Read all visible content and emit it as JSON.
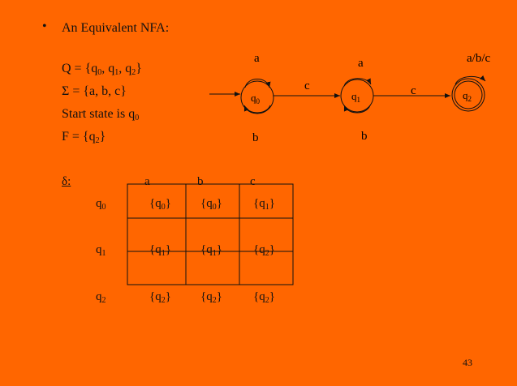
{
  "slide": {
    "bullet": "•",
    "title": "An Equivalent NFA:",
    "page_number": "43"
  },
  "definition": {
    "Q_prefix": "Q = {q",
    "Q_sub0": "0",
    "Q_mid1": ", q",
    "Q_sub1": "1",
    "Q_mid2": ", q",
    "Q_sub2": "2",
    "Q_suffix": "}",
    "sigma": "Σ = {a, b, c}",
    "start_prefix": "Start state is q",
    "start_sub": "0",
    "F_prefix": "F = {q",
    "F_sub": "2",
    "F_suffix": "}"
  },
  "diagram": {
    "states": [
      {
        "id": "q0",
        "label": "q",
        "sub": "0",
        "accepting": false,
        "start": true
      },
      {
        "id": "q1",
        "label": "q",
        "sub": "1",
        "accepting": false,
        "start": false
      },
      {
        "id": "q2",
        "label": "q",
        "sub": "2",
        "accepting": true,
        "start": false
      }
    ],
    "transitions": [
      {
        "from": "q0",
        "to": "q0",
        "label": "a"
      },
      {
        "from": "q0",
        "to": "q0",
        "label": "b"
      },
      {
        "from": "q0",
        "to": "q1",
        "label": "c"
      },
      {
        "from": "q1",
        "to": "q1",
        "label": "a"
      },
      {
        "from": "q1",
        "to": "q1",
        "label": "b"
      },
      {
        "from": "q1",
        "to": "q2",
        "label": "c"
      },
      {
        "from": "q2",
        "to": "q2",
        "label": "a/b/c"
      }
    ]
  },
  "table": {
    "delta_label": "δ:",
    "columns": [
      "a",
      "b",
      "c"
    ],
    "rows": [
      {
        "state": "q",
        "sub": "0",
        "cells": [
          [
            "{q",
            "0",
            "}"
          ],
          [
            "{q",
            "0",
            "}"
          ],
          [
            "{q",
            "1",
            "}"
          ]
        ]
      },
      {
        "state": "q",
        "sub": "1",
        "cells": [
          [
            "{q",
            "1",
            "}"
          ],
          [
            "{q",
            "1",
            "}"
          ],
          [
            "{q",
            "2",
            "}"
          ]
        ]
      },
      {
        "state": "q",
        "sub": "2",
        "cells": [
          [
            "{q",
            "2",
            "}"
          ],
          [
            "{q",
            "2",
            "}"
          ],
          [
            "{q",
            "2",
            "}"
          ]
        ]
      }
    ]
  },
  "colors": {
    "background": "#FF6600",
    "ink": "#111111"
  }
}
